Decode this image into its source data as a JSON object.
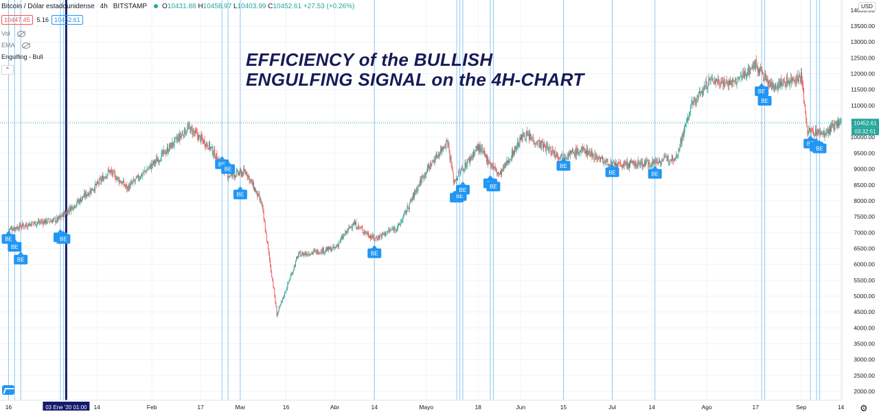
{
  "header": {
    "symbol": "Bitcoin / Dólar estadounidense",
    "interval": "4h",
    "exchange": "BITSTAMP",
    "open_label": "O",
    "open": "10431.88",
    "high_label": "H",
    "high": "10458.97",
    "low_label": "L",
    "low": "10403.99",
    "close_label": "C",
    "close": "10452.61",
    "change": "+27.53 (+0.26%)",
    "bid": "10447.45",
    "spread": "5.16",
    "ask": "10452.61"
  },
  "indicators": {
    "vol": "Vol",
    "ema": "EMA",
    "engulfing": "Engulfing - Bull"
  },
  "currency": "USD",
  "overlay_title": {
    "line1": "EFFICIENCY of the BULLISH",
    "line2": "ENGULFING SIGNAL on the 4H-CHART"
  },
  "colors": {
    "up": "#26a69a",
    "down": "#ef5350",
    "signal": "#2196f3",
    "signal_line": "#8cc7ee",
    "title": "#161b57",
    "grid": "#f0f3fa",
    "crosshair": "#131b6b"
  },
  "chart_data": {
    "type": "candlestick",
    "symbol": "BTCUSD",
    "timeframe": "4h",
    "y_axis_ticks": [
      "13500.00",
      "13000.00",
      "12500.00",
      "12000.00",
      "11500.00",
      "11000.00",
      "10500.00",
      "10000.00",
      "9500.00",
      "9000.00",
      "8500.00",
      "8000.00",
      "7500.00",
      "7000.00",
      "6500.00",
      "6000.00",
      "5500.00",
      "5000.00",
      "4500.00",
      "4000.00",
      "3500.00",
      "3000.00",
      "2500.00",
      "2000.00"
    ],
    "y_axis_top_label": "14000.00",
    "ylim": [
      1720,
      14320
    ],
    "x_axis_ticks": [
      "16",
      "14",
      "Feb",
      "17",
      "Mar",
      "16",
      "Abr",
      "14",
      "Mayo",
      "18",
      "Jun",
      "15",
      "Jul",
      "14",
      "Ago",
      "17",
      "Sep",
      "14"
    ],
    "crosshair_date": "03 Ene '20",
    "crosshair_time": "01:00",
    "last_price": "10452.61",
    "countdown": "03:32:51",
    "price_path": [
      {
        "d": "Dic 16",
        "p": 7100
      },
      {
        "d": "Dic 24",
        "p": 7300
      },
      {
        "d": "Ene 1",
        "p": 7400
      },
      {
        "d": "Ene 14",
        "p": 8500
      },
      {
        "d": "Ene 18",
        "p": 8950
      },
      {
        "d": "Ene 24",
        "p": 8400
      },
      {
        "d": "Feb 4",
        "p": 9400
      },
      {
        "d": "Feb 13",
        "p": 10300
      },
      {
        "d": "Feb 20",
        "p": 9700
      },
      {
        "d": "Feb 26",
        "p": 8800
      },
      {
        "d": "Mar 3",
        "p": 8900
      },
      {
        "d": "Mar 8",
        "p": 7900
      },
      {
        "d": "Mar 12",
        "p": 5200
      },
      {
        "d": "Mar 13",
        "p": 4400
      },
      {
        "d": "Mar 20",
        "p": 6300
      },
      {
        "d": "Abr 1",
        "p": 6500
      },
      {
        "d": "Abr 7",
        "p": 7300
      },
      {
        "d": "Abr 14",
        "p": 6800
      },
      {
        "d": "Abr 22",
        "p": 7200
      },
      {
        "d": "Abr 30",
        "p": 8800
      },
      {
        "d": "Mayo 8",
        "p": 9900
      },
      {
        "d": "Mayo 10",
        "p": 8600
      },
      {
        "d": "Mayo 18",
        "p": 9700
      },
      {
        "d": "Mayo 25",
        "p": 8800
      },
      {
        "d": "Jun 2",
        "p": 10100
      },
      {
        "d": "Jun 14",
        "p": 9400
      },
      {
        "d": "Jun 22",
        "p": 9600
      },
      {
        "d": "Jul 1",
        "p": 9100
      },
      {
        "d": "Jul 14",
        "p": 9200
      },
      {
        "d": "Jul 22",
        "p": 9400
      },
      {
        "d": "Jul 27",
        "p": 11000
      },
      {
        "d": "Ago 2",
        "p": 11800
      },
      {
        "d": "Ago 10",
        "p": 11700
      },
      {
        "d": "Ago 17",
        "p": 12300
      },
      {
        "d": "Ago 22",
        "p": 11600
      },
      {
        "d": "Sep 1",
        "p": 11900
      },
      {
        "d": "Sep 3",
        "p": 10200
      },
      {
        "d": "Sep 9",
        "p": 10100
      },
      {
        "d": "Sep 18",
        "p": 10900
      },
      {
        "d": "Sep 24",
        "p": 10450
      }
    ],
    "signals": [
      {
        "label": "BE",
        "date": "Dic 16",
        "price": 6950
      },
      {
        "label": "BE",
        "date": "Dic 18",
        "price": 6700
      },
      {
        "label": "BE",
        "date": "Dic 20",
        "price": 6300
      },
      {
        "label": "BE",
        "date": "Ene 2",
        "price": 7000
      },
      {
        "label": "BE",
        "date": "Ene 3",
        "price": 6950
      },
      {
        "label": "BE",
        "date": "Feb 24",
        "price": 9300
      },
      {
        "label": "BE",
        "date": "Feb 26",
        "price": 9150
      },
      {
        "label": "BE",
        "date": "Mar 1",
        "price": 8350
      },
      {
        "label": "BE",
        "date": "Abr 14",
        "price": 6500
      },
      {
        "label": "BE",
        "date": "Mayo 11",
        "price": 8250
      },
      {
        "label": "BE",
        "date": "Mayo 12",
        "price": 8300
      },
      {
        "label": "BE",
        "date": "Mayo 13",
        "price": 8500
      },
      {
        "label": "BE",
        "date": "Mayo 22",
        "price": 8700
      },
      {
        "label": "BE",
        "date": "Mayo 23",
        "price": 8600
      },
      {
        "label": "BE",
        "date": "Jun 15",
        "price": 9250
      },
      {
        "label": "BE",
        "date": "Jul 1",
        "price": 9050
      },
      {
        "label": "BE",
        "date": "Jul 15",
        "price": 9000
      },
      {
        "label": "BE",
        "date": "Ago 19",
        "price": 11600
      },
      {
        "label": "BE",
        "date": "Ago 20",
        "price": 11300
      },
      {
        "label": "BE",
        "date": "Sep 4",
        "price": 9950
      },
      {
        "label": "BE",
        "date": "Sep 6",
        "price": 9850
      },
      {
        "label": "BE",
        "date": "Sep 7",
        "price": 9800
      }
    ],
    "grid": true,
    "legend": "top-left"
  }
}
